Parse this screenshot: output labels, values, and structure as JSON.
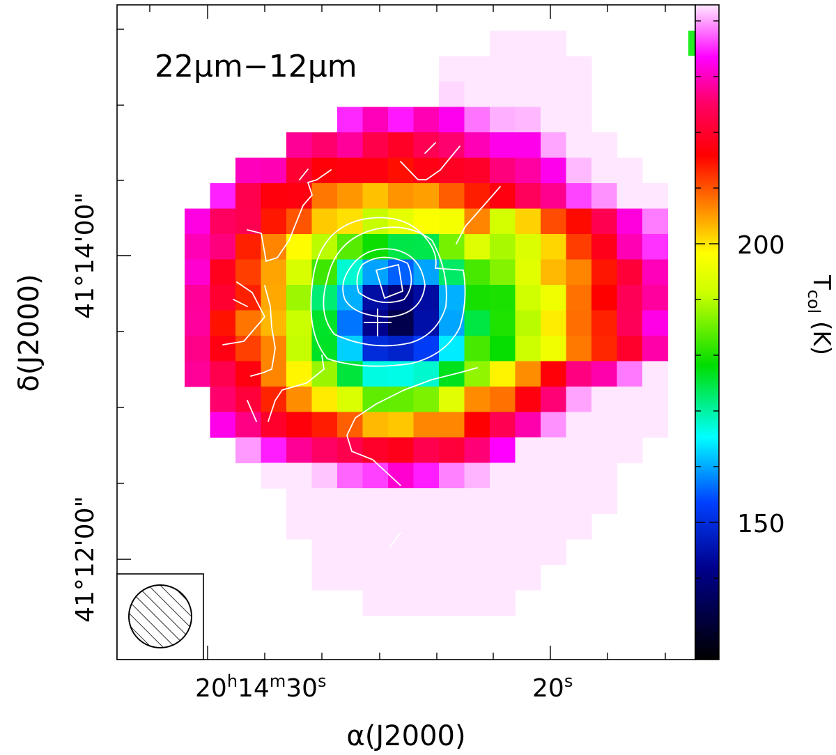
{
  "chart_data": {
    "type": "heatmap",
    "panel_label": "22μm−12μm",
    "xlabel": "α(J2000)",
    "ylabel": "δ(J2000)",
    "colorbar_label": "T",
    "colorbar_label_sub": "col",
    "colorbar_label_unit": "(K)",
    "colorbar_range": [
      122,
      237
    ],
    "colorbar_ticks": [
      {
        "value": 200,
        "label": "200"
      },
      {
        "value": 150,
        "label": "150"
      }
    ],
    "x_ticks": [
      {
        "h": "20",
        "m": "14",
        "s": "30"
      },
      {
        "s": "20"
      }
    ],
    "y_ticks": [
      {
        "label": "41°14'00\""
      },
      {
        "label": "41°12'00\""
      }
    ],
    "grid": false,
    "legend": "none",
    "beam_marker": "hatched-circle bottom-left",
    "cross_marker": true
  }
}
